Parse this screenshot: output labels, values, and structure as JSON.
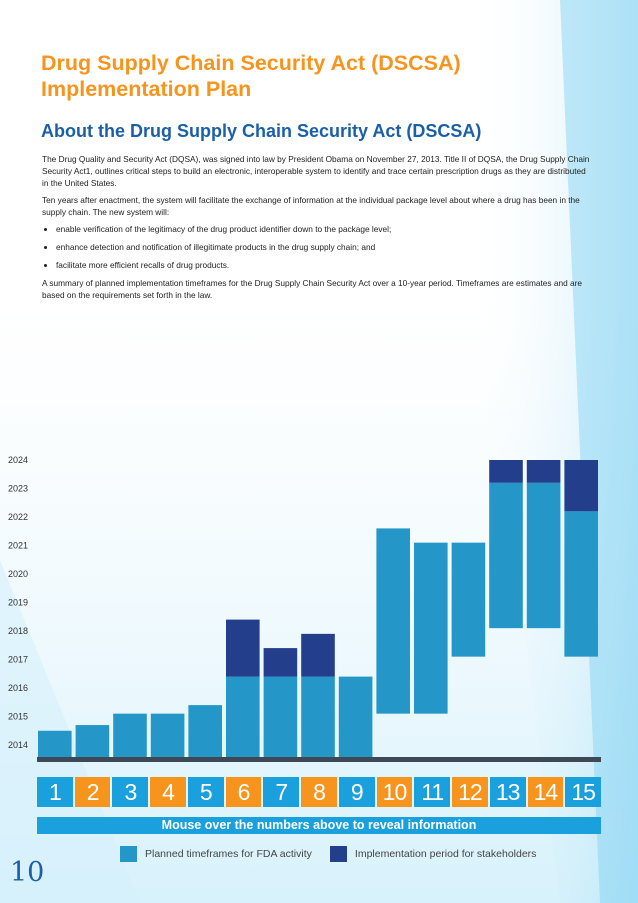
{
  "header": {
    "title_line1": "Drug Supply Chain Security Act (DSCSA)",
    "title_line2": "Implementation Plan",
    "subtitle": "About the Drug Supply Chain Security Act (DSCSA)"
  },
  "body": {
    "para1": "The Drug Quality and Security Act (DQSA), was signed into law by President Obama on November 27, 2013. Title II of DQSA, the Drug Supply Chain Security Act1, outlines critical steps to build an electronic, interoperable system to identify and trace certain prescription drugs as they are distributed in the United States.",
    "para2": "Ten years after enactment, the system will facilitate the exchange of information at the individual package level about where a drug has been in the supply chain. The new system will:",
    "bullets": [
      "enable verification of the legitimacy of the drug product identifier down to the package level;",
      "enhance detection and notification of illegitimate products in the drug supply chain; and",
      "facilitate more efficient recalls of drug products."
    ],
    "para3": "A summary of planned implementation timeframes for the Drug Supply Chain Security Act over a 10-year period. Timeframes are estimates and are based on the requirements set forth in the law."
  },
  "chart_data": {
    "type": "bar",
    "y_ticks": [
      "2014",
      "2015",
      "2016",
      "2017",
      "2018",
      "2019",
      "2020",
      "2021",
      "2022",
      "2023",
      "2024"
    ],
    "ylim": [
      2013.5,
      2024.5
    ],
    "categories": [
      "1",
      "2",
      "3",
      "4",
      "5",
      "6",
      "7",
      "8",
      "9",
      "10",
      "11",
      "12",
      "13",
      "14",
      "15"
    ],
    "series": [
      {
        "name": "Planned timeframes for FDA activity",
        "ranges": [
          [
            2013.9,
            2014.5
          ],
          [
            2013.9,
            2014.7
          ],
          [
            2013.9,
            2015.1
          ],
          [
            2013.9,
            2015.1
          ],
          [
            2013.9,
            2015.4
          ],
          [
            2013.9,
            2016.4
          ],
          [
            2013.9,
            2016.4
          ],
          [
            2013.9,
            2016.4
          ],
          [
            2013.9,
            2016.4
          ],
          [
            2015.1,
            2021.6
          ],
          [
            2015.1,
            2021.1
          ],
          [
            2017.1,
            2021.1
          ],
          [
            2018.1,
            2023.2
          ],
          [
            2018.1,
            2023.2
          ],
          [
            2017.1,
            2022.2
          ]
        ]
      },
      {
        "name": "Implementation period for stakeholders",
        "ranges": [
          null,
          null,
          null,
          null,
          null,
          [
            2016.4,
            2018.4
          ],
          [
            2016.4,
            2017.4
          ],
          [
            2016.4,
            2017.9
          ],
          null,
          null,
          null,
          null,
          [
            2023.2,
            2024.0
          ],
          [
            2023.2,
            2024.0
          ],
          [
            2022.2,
            2024.0
          ]
        ]
      }
    ],
    "colors": {
      "fda": "#2596c8",
      "stakeholders": "#233e8b"
    }
  },
  "number_strip": {
    "items": [
      "1",
      "2",
      "3",
      "4",
      "5",
      "6",
      "7",
      "8",
      "9",
      "10",
      "11",
      "12",
      "13",
      "14",
      "15"
    ],
    "colors": [
      "blue",
      "orange",
      "blue",
      "orange",
      "blue",
      "orange",
      "blue",
      "orange",
      "blue",
      "orange",
      "blue",
      "orange",
      "blue",
      "orange",
      "blue"
    ]
  },
  "mouse_over_text": "Mouse over the numbers above to reveal information",
  "legend": {
    "fda_label": "Planned timeframes for FDA activity",
    "stakeholder_label": "Implementation period for stakeholders"
  },
  "page_number": "10"
}
